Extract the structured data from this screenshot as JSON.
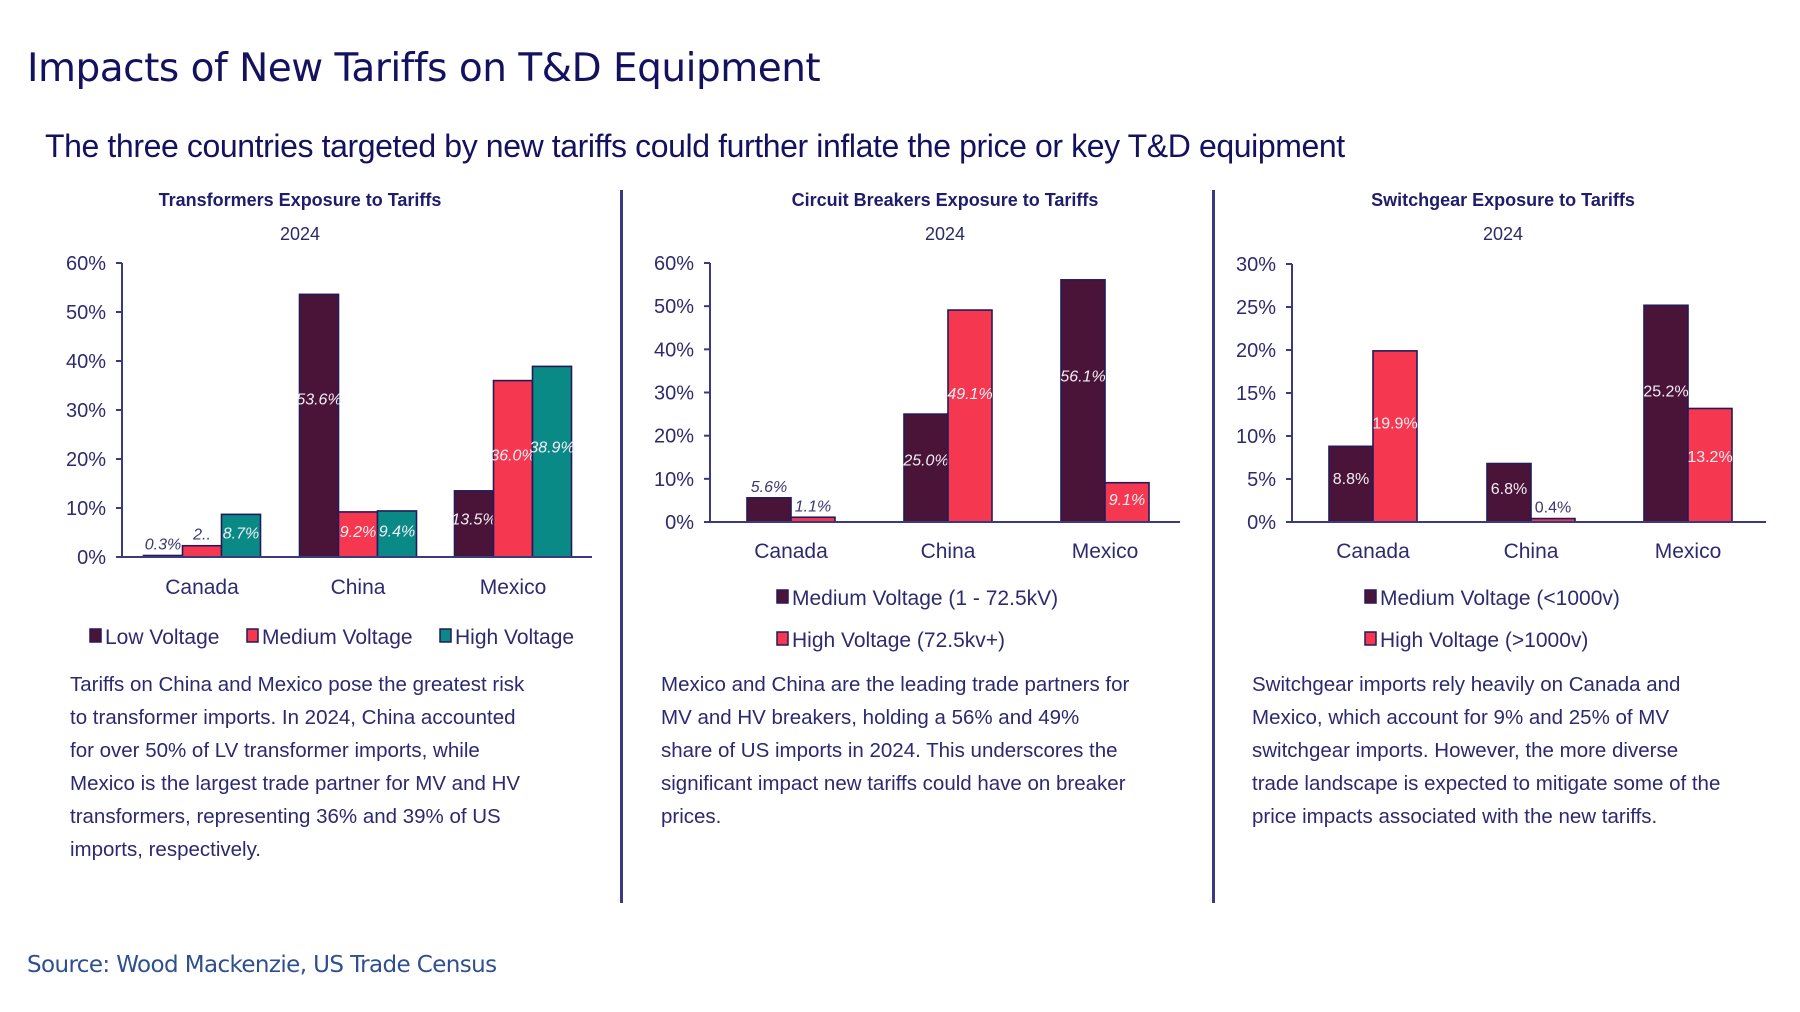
{
  "header": {
    "title": "Impacts of New Tariffs on T&D Equipment",
    "subtitle": "The three countries targeted by new tariffs could further inflate the price or key T&D equipment"
  },
  "colors": {
    "low_voltage": "#4a1438",
    "medium_voltage": "#f5384f",
    "high_voltage": "#0a8a87",
    "text": "#1f1c6b",
    "axis": "#3a3a80"
  },
  "chart_data": [
    {
      "type": "bar",
      "title": "Transformers Exposure to Tariffs",
      "subtitle": "2024",
      "xlabel": "",
      "ylabel": "",
      "ylim": [
        0,
        60
      ],
      "yticks": [
        "0%",
        "10%",
        "20%",
        "30%",
        "40%",
        "50%",
        "60%"
      ],
      "ytick_values": [
        0,
        10,
        20,
        30,
        40,
        50,
        60
      ],
      "grid": false,
      "legend_position": "bottom",
      "categories": [
        "Canada",
        "China",
        "Mexico"
      ],
      "series": [
        {
          "name": "Low Voltage",
          "color": "#4a1438",
          "values": [
            0.3,
            53.6,
            13.5
          ],
          "labels": [
            "0.3%",
            "53.6%",
            "13.5%"
          ]
        },
        {
          "name": "Medium Voltage",
          "color": "#f5384f",
          "values": [
            2.3,
            9.2,
            36.0
          ],
          "labels": [
            "2..",
            "9.2%",
            "36.0%"
          ]
        },
        {
          "name": "High Voltage",
          "color": "#0a8a87",
          "values": [
            8.7,
            9.4,
            38.9
          ],
          "labels": [
            "8.7%",
            "9.4%",
            "38.9%"
          ]
        }
      ],
      "description": "Tariffs on China and Mexico pose the greatest risk to transformer imports. In 2024, China accounted for over 50% of LV transformer imports, while Mexico is the largest trade partner for MV and HV transformers, representing 36% and 39% of US imports, respectively.",
      "description_lines": [
        "Tariffs on China and Mexico pose the greatest risk",
        "to transformer imports. In 2024, China accounted",
        "for over 50% of LV transformer imports, while",
        "Mexico is the largest trade partner for MV and HV",
        "transformers, representing 36% and 39% of US",
        "imports, respectively."
      ]
    },
    {
      "type": "bar",
      "title": "Circuit Breakers Exposure to Tariffs",
      "subtitle": "2024",
      "xlabel": "",
      "ylabel": "",
      "ylim": [
        0,
        60
      ],
      "yticks": [
        "0%",
        "10%",
        "20%",
        "30%",
        "40%",
        "50%",
        "60%"
      ],
      "ytick_values": [
        0,
        10,
        20,
        30,
        40,
        50,
        60
      ],
      "grid": false,
      "legend_position": "bottom",
      "categories": [
        "Canada",
        "China",
        "Mexico"
      ],
      "series": [
        {
          "name": "Medium Voltage (1 - 72.5kV)",
          "color": "#4a1438",
          "values": [
            5.6,
            25.0,
            56.1
          ],
          "labels": [
            "5.6%",
            "25.0%",
            "56.1%"
          ]
        },
        {
          "name": "High Voltage (72.5kv+)",
          "color": "#f5384f",
          "values": [
            1.1,
            49.1,
            9.1
          ],
          "labels": [
            "1.1%",
            "49.1%",
            "9.1%"
          ]
        }
      ],
      "description_lines": [
        "Mexico and China are the leading trade partners for",
        "MV and HV breakers, holding a 56% and 49%",
        "share of US imports in 2024. This underscores the",
        "significant impact new tariffs could have on breaker",
        "prices."
      ]
    },
    {
      "type": "bar",
      "title": "Switchgear Exposure to Tariffs",
      "subtitle": "2024",
      "xlabel": "",
      "ylabel": "",
      "ylim": [
        0,
        30
      ],
      "yticks": [
        "0%",
        "5%",
        "10%",
        "15%",
        "20%",
        "25%",
        "30%"
      ],
      "ytick_values": [
        0,
        5,
        10,
        15,
        20,
        25,
        30
      ],
      "grid": false,
      "legend_position": "bottom",
      "categories": [
        "Canada",
        "China",
        "Mexico"
      ],
      "series": [
        {
          "name": "Medium Voltage (<1000v)",
          "color": "#4a1438",
          "values": [
            8.8,
            6.8,
            25.2
          ],
          "labels": [
            "8.8%",
            "6.8%",
            "25.2%"
          ]
        },
        {
          "name": "High Voltage (>1000v)",
          "color": "#f5384f",
          "values": [
            19.9,
            0.4,
            13.2
          ],
          "labels": [
            "19.9%",
            "0.4%",
            "13.2%"
          ]
        }
      ],
      "description_lines": [
        "Switchgear imports rely heavily on Canada and",
        "Mexico, which account for 9% and 25% of MV",
        "switchgear imports. However, the more diverse",
        "trade landscape is expected to mitigate some of the",
        "price impacts associated with the new tariffs."
      ]
    }
  ],
  "footer": {
    "source": "Source: Wood Mackenzie, US Trade Census"
  }
}
